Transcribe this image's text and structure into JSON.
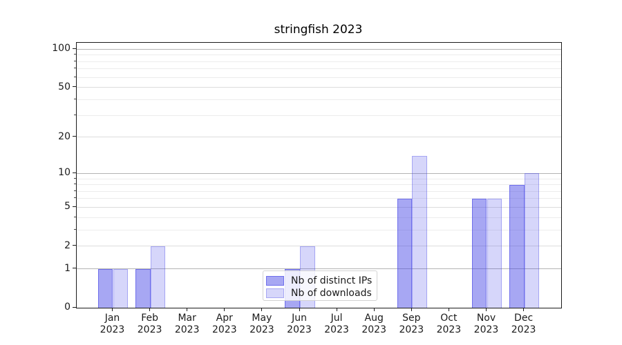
{
  "chart_data": {
    "type": "bar",
    "title": "stringfish 2023",
    "scale": "log1p",
    "categories": [
      "Jan",
      "Feb",
      "Mar",
      "Apr",
      "May",
      "Jun",
      "Jul",
      "Aug",
      "Sep",
      "Oct",
      "Nov",
      "Dec"
    ],
    "year": "2023",
    "series": [
      {
        "name": "Nb of distinct IPs",
        "key": "distinct-ips",
        "color": "#4545e6",
        "alpha": 0.47,
        "values": [
          1,
          1,
          0,
          0,
          0,
          1,
          0,
          0,
          6,
          0,
          6,
          8
        ]
      },
      {
        "name": "Nb of downloads",
        "key": "downloads",
        "color": "#4545e6",
        "alpha": 0.22,
        "values": [
          1,
          2,
          0,
          0,
          0,
          2,
          0,
          0,
          14,
          0,
          6,
          10
        ]
      }
    ],
    "xlabel": "",
    "ylabel": "",
    "ylim": [
      0,
      112
    ],
    "yticks": [
      0,
      1,
      2,
      5,
      10,
      20,
      50,
      100
    ],
    "major_yticks": [
      1,
      10,
      100
    ],
    "minor_yticks": [
      3,
      4,
      6,
      7,
      8,
      9,
      30,
      40,
      60,
      70,
      80,
      90
    ],
    "grid": true,
    "legend_position": "lower-center-inside"
  }
}
